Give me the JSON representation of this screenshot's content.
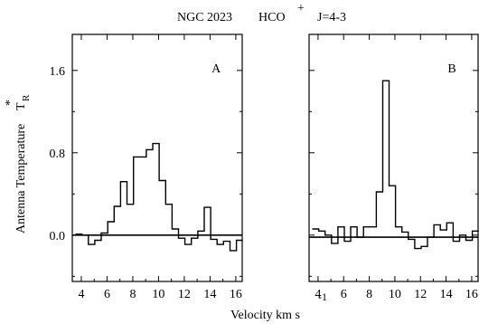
{
  "header": {
    "object": "NGC 2023",
    "molecule": "HCO",
    "charge": "+",
    "transition": "J=4-3"
  },
  "yaxis": {
    "label_main": "Antenna Temperature",
    "label_symbol": "T",
    "label_sub": "R",
    "label_sup": "*"
  },
  "xaxis": {
    "label_main": "Velocity km s",
    "label_sup": "-1"
  },
  "chart_data": [
    {
      "type": "line",
      "step": true,
      "panel_label": "A",
      "xlim": [
        3.3,
        16.5
      ],
      "ylim": [
        -0.45,
        1.95
      ],
      "xticks": [
        4,
        6,
        8,
        10,
        12,
        14,
        16
      ],
      "xtick_labels": [
        "4",
        "6",
        "8",
        "10",
        "12",
        "14",
        "16"
      ],
      "yticks": [
        0.0,
        0.8,
        1.6
      ],
      "ytick_labels": [
        "0.0",
        "0.8",
        "1.6"
      ],
      "baseline": 0.0,
      "x": [
        3.8,
        4.3,
        4.8,
        5.3,
        5.8,
        6.3,
        6.8,
        7.3,
        7.8,
        8.3,
        8.8,
        9.3,
        9.8,
        10.3,
        10.8,
        11.3,
        11.8,
        12.3,
        12.8,
        13.3,
        13.8,
        14.3,
        14.8,
        15.3,
        15.8,
        16.3
      ],
      "y": [
        0.01,
        0.0,
        -0.09,
        -0.05,
        0.02,
        0.13,
        0.28,
        0.52,
        0.3,
        0.76,
        0.76,
        0.83,
        0.89,
        0.53,
        0.3,
        0.06,
        -0.03,
        -0.09,
        -0.03,
        0.04,
        0.27,
        -0.04,
        -0.09,
        -0.06,
        -0.15,
        -0.05
      ]
    },
    {
      "type": "line",
      "step": true,
      "panel_label": "B",
      "xlim": [
        3.3,
        16.5
      ],
      "ylim": [
        -0.45,
        1.95
      ],
      "xticks": [
        4,
        6,
        8,
        10,
        12,
        14,
        16
      ],
      "xtick_labels": [
        "4",
        "6",
        "8",
        "10",
        "12",
        "14",
        "16"
      ],
      "yticks": [
        0.0,
        0.8,
        1.6
      ],
      "ytick_labels": [],
      "baseline": -0.02,
      "x": [
        3.8,
        4.3,
        4.8,
        5.3,
        5.8,
        6.3,
        6.8,
        7.3,
        7.8,
        8.3,
        8.8,
        9.3,
        9.8,
        10.3,
        10.8,
        11.3,
        11.8,
        12.3,
        12.8,
        13.3,
        13.8,
        14.3,
        14.8,
        15.3,
        15.8,
        16.3
      ],
      "y": [
        0.06,
        0.04,
        0.0,
        -0.08,
        0.08,
        -0.06,
        0.08,
        -0.02,
        0.08,
        0.08,
        0.42,
        1.5,
        0.48,
        0.08,
        0.03,
        -0.04,
        -0.13,
        -0.11,
        -0.02,
        0.1,
        0.05,
        0.12,
        -0.06,
        0.0,
        -0.05,
        0.04
      ]
    }
  ]
}
